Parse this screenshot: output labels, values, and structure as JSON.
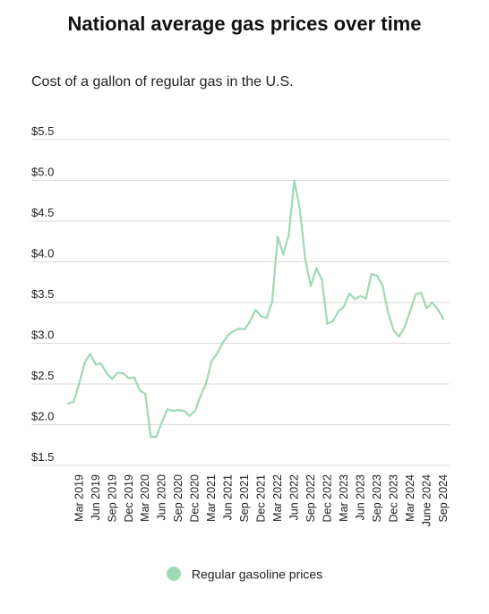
{
  "chart_data": {
    "type": "line",
    "title": "National average gas prices over time",
    "subtitle": "Cost of a gallon of regular gas in the U.S.",
    "xlabel": "",
    "ylabel": "",
    "ylim": [
      1.5,
      5.5
    ],
    "yticks": [
      1.5,
      2.0,
      2.5,
      3.0,
      3.5,
      4.0,
      4.5,
      5.0,
      5.5
    ],
    "ytick_labels": [
      "$1.5",
      "$2.0",
      "$2.5",
      "$3.0",
      "$3.5",
      "$4.0",
      "$4.5",
      "$5.0",
      "$5.5"
    ],
    "grid": "horizontal",
    "legend_position": "bottom-center",
    "x": [
      "Jan 2019",
      "Feb 2019",
      "Mar 2019",
      "Apr 2019",
      "May 2019",
      "Jun 2019",
      "Jul 2019",
      "Aug 2019",
      "Sep 2019",
      "Oct 2019",
      "Nov 2019",
      "Dec 2019",
      "Jan 2020",
      "Feb 2020",
      "Mar 2020",
      "Apr 2020",
      "May 2020",
      "Jun 2020",
      "Jul 2020",
      "Aug 2020",
      "Sep 2020",
      "Oct 2020",
      "Nov 2020",
      "Dec 2020",
      "Jan 2021",
      "Feb 2021",
      "Mar 2021",
      "Apr 2021",
      "May 2021",
      "Jun 2021",
      "Jul 2021",
      "Aug 2021",
      "Sep 2021",
      "Oct 2021",
      "Nov 2021",
      "Dec 2021",
      "Jan 2022",
      "Feb 2022",
      "Mar 2022",
      "Apr 2022",
      "May 2022",
      "Jun 2022",
      "Jul 2022",
      "Aug 2022",
      "Sep 2022",
      "Oct 2022",
      "Nov 2022",
      "Dec 2022",
      "Jan 2023",
      "Feb 2023",
      "Mar 2023",
      "Apr 2023",
      "May 2023",
      "Jun 2023",
      "Jul 2023",
      "Aug 2023",
      "Sep 2023",
      "Oct 2023",
      "Nov 2023",
      "Dec 2023",
      "Jan 2024",
      "Feb 2024",
      "Mar 2024",
      "Apr 2024",
      "May 2024",
      "Jun 2024",
      "Jul 2024",
      "Aug 2024",
      "Sep 2024"
    ],
    "xtick_labels": [
      "Mar 2019",
      "Jun 2019",
      "Sep 2019",
      "Dec 2019",
      "Mar 2020",
      "Jun 2020",
      "Sep 2020",
      "Dec 2020",
      "Mar 2021",
      "Jun 2021",
      "Sep 2021",
      "Dec 2021",
      "Mar 2022",
      "Jun 2022",
      "Sep 2022",
      "Dec 2022",
      "Mar 2023",
      "Jun 2023",
      "Sep 2023",
      "Dec 2023",
      "Mar 2024",
      "June 2024",
      "Sep 2024"
    ],
    "series": [
      {
        "name": "Regular gasoline prices",
        "color": "#9fd9b4",
        "values": [
          2.26,
          2.28,
          2.5,
          2.76,
          2.87,
          2.74,
          2.75,
          2.63,
          2.56,
          2.64,
          2.63,
          2.57,
          2.58,
          2.42,
          2.38,
          1.85,
          1.85,
          2.03,
          2.19,
          2.17,
          2.18,
          2.17,
          2.11,
          2.17,
          2.35,
          2.5,
          2.78,
          2.87,
          3.0,
          3.1,
          3.15,
          3.18,
          3.17,
          3.27,
          3.41,
          3.33,
          3.31,
          3.51,
          4.31,
          4.09,
          4.33,
          5.0,
          4.65,
          4.03,
          3.7,
          3.92,
          3.78,
          3.24,
          3.27,
          3.39,
          3.45,
          3.61,
          3.54,
          3.58,
          3.55,
          3.85,
          3.83,
          3.71,
          3.38,
          3.16,
          3.08,
          3.2,
          3.39,
          3.6,
          3.62,
          3.43,
          3.5,
          3.42,
          3.3
        ]
      }
    ]
  }
}
